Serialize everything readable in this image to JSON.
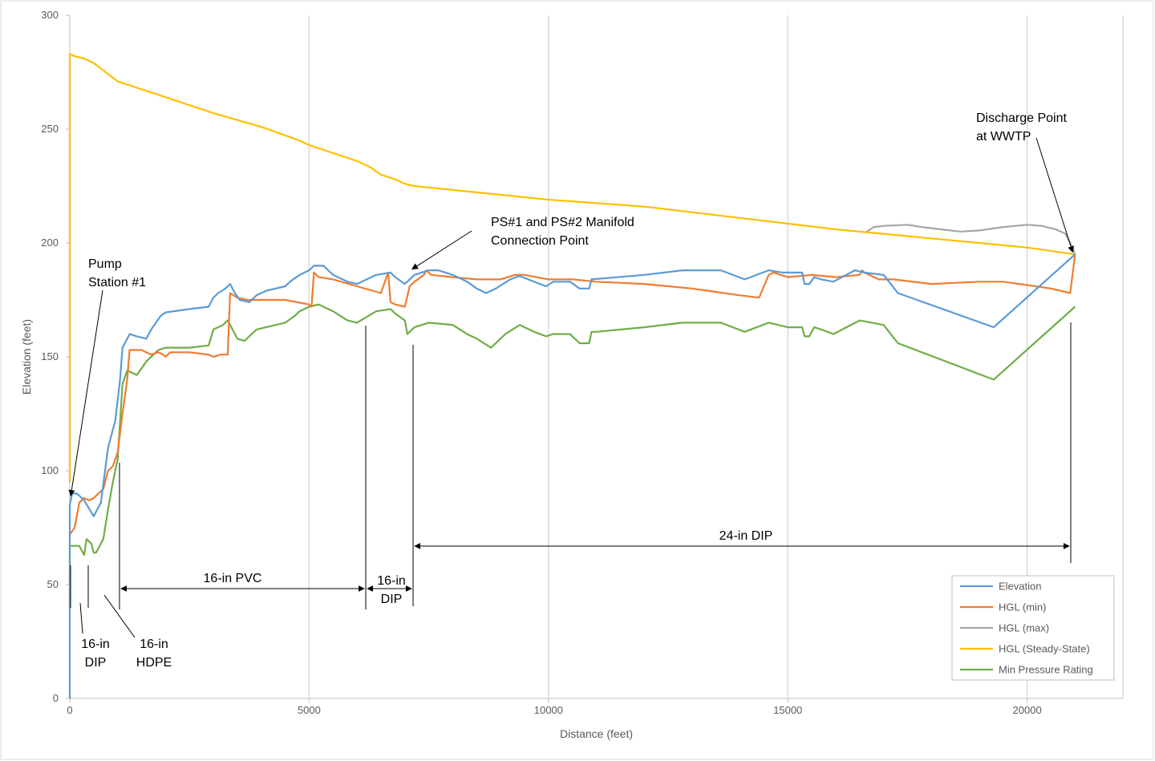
{
  "chart_data": {
    "type": "line",
    "xlabel": "Distance (feet)",
    "ylabel": "Elevation (feet)",
    "xlim": [
      0,
      22000
    ],
    "ylim": [
      0,
      300
    ],
    "xticks": [
      0,
      5000,
      10000,
      15000,
      20000
    ],
    "yticks": [
      0,
      50,
      100,
      150,
      200,
      250,
      300
    ],
    "grid": "vertical",
    "legend": "bottom-right",
    "series": [
      {
        "name": "Elevation",
        "color": "#5b9bd5",
        "points": [
          [
            0,
            0
          ],
          [
            0,
            45
          ],
          [
            0,
            85
          ],
          [
            50,
            90
          ],
          [
            150,
            90
          ],
          [
            300,
            87
          ],
          [
            500,
            80
          ],
          [
            650,
            86
          ],
          [
            800,
            110
          ],
          [
            950,
            122
          ],
          [
            1050,
            140
          ],
          [
            1100,
            154
          ],
          [
            1250,
            160
          ],
          [
            1400,
            159
          ],
          [
            1600,
            158
          ],
          [
            1700,
            162
          ],
          [
            1800,
            165
          ],
          [
            1900,
            168
          ],
          [
            2000,
            169.5
          ],
          [
            2500,
            171
          ],
          [
            2900,
            172
          ],
          [
            3000,
            176
          ],
          [
            3100,
            178
          ],
          [
            3250,
            180
          ],
          [
            3350,
            182
          ],
          [
            3450,
            178
          ],
          [
            3550,
            175
          ],
          [
            3750,
            174
          ],
          [
            3900,
            177
          ],
          [
            4100,
            179
          ],
          [
            4500,
            181
          ],
          [
            4600,
            183
          ],
          [
            4800,
            186
          ],
          [
            5000,
            188
          ],
          [
            5100,
            190
          ],
          [
            5300,
            190
          ],
          [
            5500,
            186
          ],
          [
            5800,
            183
          ],
          [
            6000,
            182
          ],
          [
            6400,
            186
          ],
          [
            6700,
            187
          ],
          [
            6800,
            185
          ],
          [
            7000,
            182
          ],
          [
            7200,
            186
          ],
          [
            7500,
            188
          ],
          [
            7700,
            188
          ],
          [
            8000,
            186
          ],
          [
            8300,
            183
          ],
          [
            8500,
            180
          ],
          [
            8700,
            178
          ],
          [
            8900,
            180
          ],
          [
            9200,
            184
          ],
          [
            9400,
            185.5
          ],
          [
            9700,
            183
          ],
          [
            9950,
            181
          ],
          [
            10100,
            183
          ],
          [
            10450,
            183
          ],
          [
            10650,
            180
          ],
          [
            10850,
            180
          ],
          [
            10900,
            184
          ],
          [
            12000,
            186
          ],
          [
            12800,
            188
          ],
          [
            13200,
            188
          ],
          [
            13600,
            188
          ],
          [
            14100,
            184
          ],
          [
            14600,
            188
          ],
          [
            14900,
            187
          ],
          [
            15300,
            187
          ],
          [
            15350,
            182
          ],
          [
            15450,
            182
          ],
          [
            15550,
            185
          ],
          [
            15700,
            184
          ],
          [
            15950,
            183
          ],
          [
            16400,
            188
          ],
          [
            16600,
            187
          ],
          [
            17000,
            186
          ],
          [
            17300,
            178
          ],
          [
            19300,
            163
          ],
          [
            21000,
            195
          ]
        ]
      },
      {
        "name": "HGL (min)",
        "color": "#ed7d31",
        "points": [
          [
            0,
            72
          ],
          [
            100,
            75
          ],
          [
            200,
            86
          ],
          [
            300,
            88
          ],
          [
            400,
            87
          ],
          [
            500,
            88
          ],
          [
            600,
            90
          ],
          [
            700,
            92
          ],
          [
            800,
            100
          ],
          [
            900,
            102
          ],
          [
            1000,
            108
          ],
          [
            1100,
            125
          ],
          [
            1200,
            140
          ],
          [
            1250,
            153
          ],
          [
            1500,
            153
          ],
          [
            1700,
            151
          ],
          [
            1850,
            152
          ],
          [
            1950,
            151
          ],
          [
            2000,
            150
          ],
          [
            2050,
            151
          ],
          [
            2100,
            152
          ],
          [
            2500,
            152
          ],
          [
            2900,
            151
          ],
          [
            3000,
            150
          ],
          [
            3150,
            151
          ],
          [
            3300,
            151
          ],
          [
            3350,
            178
          ],
          [
            3500,
            176
          ],
          [
            3700,
            175
          ],
          [
            4000,
            175
          ],
          [
            4500,
            175
          ],
          [
            5000,
            173
          ],
          [
            5050,
            172
          ],
          [
            5100,
            187
          ],
          [
            5200,
            185
          ],
          [
            5500,
            184
          ],
          [
            6000,
            181
          ],
          [
            6500,
            178
          ],
          [
            6650,
            187
          ],
          [
            6700,
            174
          ],
          [
            6800,
            173
          ],
          [
            7000,
            172
          ],
          [
            7100,
            181
          ],
          [
            7200,
            183
          ],
          [
            7400,
            186
          ],
          [
            7450,
            188
          ],
          [
            7550,
            186
          ],
          [
            8000,
            185
          ],
          [
            8500,
            184
          ],
          [
            9000,
            184
          ],
          [
            9300,
            186
          ],
          [
            9500,
            186
          ],
          [
            10000,
            184
          ],
          [
            10500,
            184
          ],
          [
            11000,
            183
          ],
          [
            12000,
            182
          ],
          [
            13000,
            180
          ],
          [
            14000,
            177
          ],
          [
            14400,
            176
          ],
          [
            14600,
            186
          ],
          [
            14700,
            187
          ],
          [
            15000,
            185
          ],
          [
            15500,
            186
          ],
          [
            16000,
            185
          ],
          [
            16500,
            186
          ],
          [
            16550,
            188
          ],
          [
            16600,
            187
          ],
          [
            16900,
            184
          ],
          [
            17200,
            184
          ],
          [
            18000,
            182
          ],
          [
            19000,
            183
          ],
          [
            19500,
            183
          ],
          [
            20500,
            180
          ],
          [
            20900,
            178
          ],
          [
            21000,
            195
          ]
        ]
      },
      {
        "name": "HGL (max)",
        "color": "#a5a5a5",
        "points": [
          [
            16650,
            205
          ],
          [
            16800,
            207
          ],
          [
            17000,
            207.5
          ],
          [
            17500,
            208
          ],
          [
            17800,
            207
          ],
          [
            18200,
            206
          ],
          [
            18600,
            205
          ],
          [
            19000,
            205.5
          ],
          [
            19500,
            207
          ],
          [
            20000,
            208
          ],
          [
            20300,
            207.5
          ],
          [
            20600,
            206
          ],
          [
            20800,
            204
          ],
          [
            20950,
            198
          ],
          [
            21000,
            195
          ]
        ]
      },
      {
        "name": "HGL (Steady-State)",
        "color": "#ffc000",
        "points": [
          [
            0,
            95
          ],
          [
            0,
            283
          ],
          [
            100,
            282
          ],
          [
            300,
            281
          ],
          [
            500,
            279
          ],
          [
            1000,
            271
          ],
          [
            2000,
            264
          ],
          [
            3000,
            257
          ],
          [
            4000,
            251
          ],
          [
            4800,
            245
          ],
          [
            5000,
            243
          ],
          [
            6000,
            236
          ],
          [
            6300,
            233
          ],
          [
            6500,
            230
          ],
          [
            6800,
            228
          ],
          [
            7000,
            226
          ],
          [
            7200,
            225
          ],
          [
            10000,
            219
          ],
          [
            12000,
            216
          ],
          [
            14000,
            211
          ],
          [
            16000,
            206
          ],
          [
            18000,
            202
          ],
          [
            19000,
            200
          ],
          [
            20000,
            198
          ],
          [
            21000,
            195
          ]
        ]
      },
      {
        "name": "Min Pressure Rating",
        "color": "#70ad47",
        "points": [
          [
            0,
            40
          ],
          [
            0,
            67
          ],
          [
            100,
            67
          ],
          [
            200,
            67
          ],
          [
            300,
            63
          ],
          [
            350,
            70
          ],
          [
            450,
            68
          ],
          [
            500,
            64
          ],
          [
            550,
            64
          ],
          [
            700,
            70
          ],
          [
            800,
            83
          ],
          [
            900,
            95
          ],
          [
            1000,
            105
          ],
          [
            1100,
            138
          ],
          [
            1200,
            144
          ],
          [
            1400,
            142
          ],
          [
            1600,
            148
          ],
          [
            1800,
            152
          ],
          [
            1850,
            153
          ],
          [
            2000,
            154
          ],
          [
            2500,
            154
          ],
          [
            2900,
            155
          ],
          [
            3000,
            162
          ],
          [
            3200,
            164
          ],
          [
            3300,
            166
          ],
          [
            3400,
            162
          ],
          [
            3500,
            158
          ],
          [
            3650,
            157
          ],
          [
            3900,
            162
          ],
          [
            4100,
            163
          ],
          [
            4500,
            165
          ],
          [
            4700,
            168
          ],
          [
            4800,
            170
          ],
          [
            5000,
            172
          ],
          [
            5200,
            173
          ],
          [
            5500,
            170
          ],
          [
            5800,
            166
          ],
          [
            6000,
            165
          ],
          [
            6400,
            170
          ],
          [
            6700,
            171
          ],
          [
            6800,
            169
          ],
          [
            7000,
            166
          ],
          [
            7050,
            160
          ],
          [
            7200,
            163
          ],
          [
            7500,
            165
          ],
          [
            8000,
            164
          ],
          [
            8300,
            160
          ],
          [
            8500,
            158
          ],
          [
            8800,
            154
          ],
          [
            9100,
            160
          ],
          [
            9400,
            164
          ],
          [
            9700,
            161
          ],
          [
            9950,
            159
          ],
          [
            10100,
            160
          ],
          [
            10450,
            160
          ],
          [
            10650,
            156
          ],
          [
            10850,
            156
          ],
          [
            10900,
            161
          ],
          [
            11000,
            161
          ],
          [
            12000,
            163
          ],
          [
            12800,
            165
          ],
          [
            13600,
            165
          ],
          [
            14100,
            161
          ],
          [
            14600,
            165
          ],
          [
            15000,
            163
          ],
          [
            15300,
            163
          ],
          [
            15350,
            159
          ],
          [
            15450,
            159
          ],
          [
            15550,
            163
          ],
          [
            15700,
            162
          ],
          [
            15950,
            160
          ],
          [
            16500,
            166
          ],
          [
            17000,
            164
          ],
          [
            17300,
            156
          ],
          [
            19300,
            140
          ],
          [
            21000,
            172
          ]
        ]
      }
    ],
    "annotations": [
      {
        "id": "pump-station",
        "lines": [
          "Pump",
          "Station #1"
        ]
      },
      {
        "id": "manifold",
        "lines": [
          "PS#1 and PS#2 Manifold",
          "Connection Point"
        ]
      },
      {
        "id": "discharge",
        "lines": [
          "Discharge Point",
          "at WWTP"
        ]
      },
      {
        "id": "seg-16in-pvc",
        "lines": [
          "16-in PVC"
        ]
      },
      {
        "id": "seg-16in-dip-mid",
        "lines": [
          "16-in",
          "DIP"
        ]
      },
      {
        "id": "seg-24in-dip",
        "lines": [
          "24-in DIP"
        ]
      },
      {
        "id": "seg-16in-dip-start",
        "lines": [
          "16-in",
          "DIP"
        ]
      },
      {
        "id": "seg-16in-hdpe",
        "lines": [
          "16-in",
          "HDPE"
        ]
      }
    ]
  }
}
